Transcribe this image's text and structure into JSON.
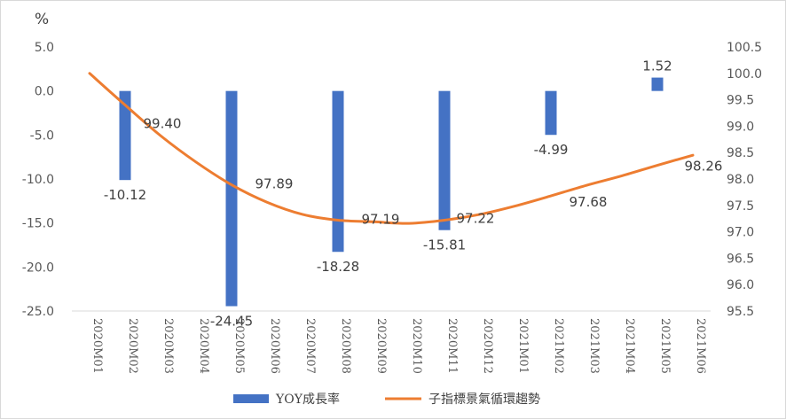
{
  "chart_data": {
    "type": "bar+line",
    "y_left_unit": "%",
    "categories": [
      "2020M01",
      "2020M02",
      "2020M03",
      "2020M04",
      "2020M05",
      "2020M06",
      "2020M07",
      "2020M08",
      "2020M09",
      "2020M10",
      "2020M11",
      "2020M12",
      "2021M01",
      "2021M02",
      "2021M03",
      "2021M04",
      "2021M05",
      "2021M06"
    ],
    "series": [
      {
        "name": "YOY成長率",
        "type": "bar",
        "axis": "left",
        "color": "#4472C4",
        "values": [
          null,
          -10.12,
          null,
          null,
          -24.45,
          null,
          null,
          -18.28,
          null,
          null,
          -15.81,
          null,
          null,
          -4.99,
          null,
          null,
          1.52,
          null
        ],
        "labels": [
          "",
          "-10.12",
          "",
          "",
          "-24.45",
          "",
          "",
          "-18.28",
          "",
          "",
          "-15.81",
          "",
          "",
          "-4.99",
          "",
          "",
          "1.52",
          ""
        ]
      },
      {
        "name": "子指標景氣循環趨勢",
        "type": "line",
        "axis": "right",
        "color": "#ED7D31",
        "values": [
          100.0,
          99.4,
          98.82,
          98.32,
          97.89,
          97.56,
          97.33,
          97.22,
          97.19,
          97.16,
          97.22,
          97.33,
          97.49,
          97.68,
          97.88,
          98.06,
          98.26,
          98.45
        ],
        "labels": [
          "",
          "99.40",
          "",
          "",
          "97.89",
          "",
          "",
          "",
          "97.19",
          "",
          "97.22",
          "",
          "",
          "97.68",
          "",
          "",
          "98.26",
          ""
        ]
      }
    ],
    "y_left": {
      "min": -25,
      "max": 5,
      "ticks": [
        "5.0",
        "0.0",
        "-5.0",
        "-10.0",
        "-15.0",
        "-20.0",
        "-25.0"
      ],
      "tick_values": [
        5,
        0,
        -5,
        -10,
        -15,
        -20,
        -25
      ]
    },
    "y_right": {
      "min": 95.5,
      "max": 100.5,
      "ticks": [
        "100.5",
        "100.0",
        "99.5",
        "99.0",
        "98.5",
        "98.0",
        "97.5",
        "97.0",
        "96.5",
        "96.0",
        "95.5"
      ],
      "tick_values": [
        100.5,
        100,
        99.5,
        99,
        98.5,
        98,
        97.5,
        97,
        96.5,
        96,
        95.5
      ]
    },
    "grid": false,
    "legend_position": "bottom"
  }
}
